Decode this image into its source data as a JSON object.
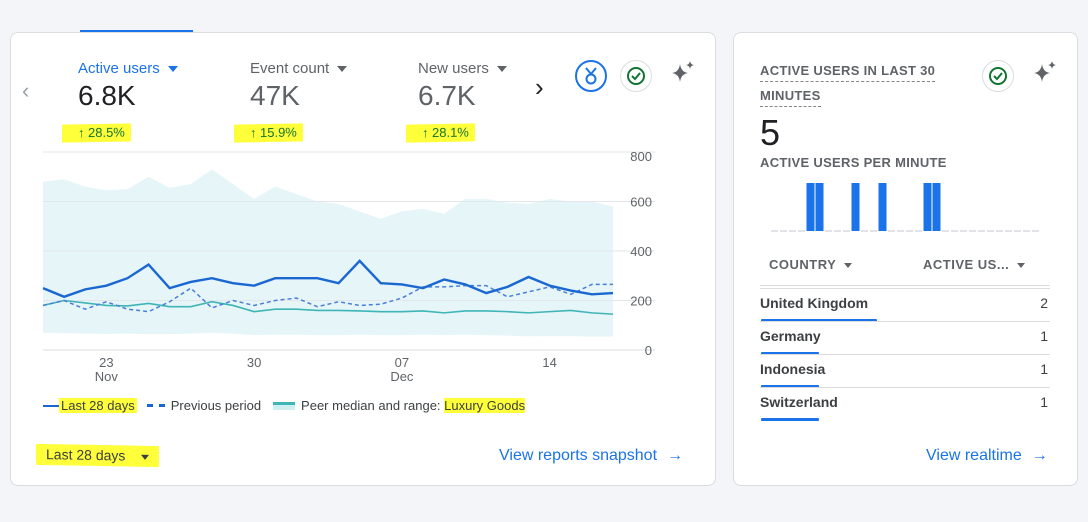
{
  "overview": {
    "metrics": [
      {
        "label": "Active users",
        "value": "6.8K",
        "change": "28.5%",
        "active": true
      },
      {
        "label": "Event count",
        "value": "47K",
        "change": "15.9%",
        "active": false
      },
      {
        "label": "New users",
        "value": "6.7K",
        "change": "28.1%",
        "active": false
      }
    ],
    "icons": [
      "chevron-left-icon",
      "chevron-right-icon",
      "medal-icon",
      "check-circle-icon",
      "sparkle-icon"
    ],
    "legend": {
      "current": "Last 28 days",
      "previous": "Previous period",
      "peer": "Peer median and range: ",
      "peer_category": "Luxury Goods"
    },
    "date_range": "Last 28 days",
    "link": "View reports snapshot"
  },
  "chart_data": {
    "type": "line",
    "x": [
      "Nov 20",
      "Nov 21",
      "Nov 22",
      "Nov 23",
      "Nov 24",
      "Nov 25",
      "Nov 26",
      "Nov 27",
      "Nov 28",
      "Nov 29",
      "Nov 30",
      "Dec 01",
      "Dec 02",
      "Dec 03",
      "Dec 04",
      "Dec 05",
      "Dec 06",
      "Dec 07",
      "Dec 08",
      "Dec 09",
      "Dec 10",
      "Dec 11",
      "Dec 12",
      "Dec 13",
      "Dec 14",
      "Dec 15",
      "Dec 16",
      "Dec 17"
    ],
    "x_ticks": [
      {
        "day": "23",
        "month": "Nov",
        "index": 3
      },
      {
        "day": "30",
        "month": "",
        "index": 10
      },
      {
        "day": "07",
        "month": "Dec",
        "index": 17
      },
      {
        "day": "14",
        "month": "",
        "index": 24
      }
    ],
    "y_ticks": [
      "0",
      "200",
      "400",
      "600",
      "800"
    ],
    "ylim": [
      0,
      800
    ],
    "grid": true,
    "legend_placement": "bottom",
    "series": [
      {
        "name": "Last 28 days",
        "style": "solid",
        "color": "#1a67d2",
        "values": [
          250,
          215,
          245,
          260,
          290,
          345,
          250,
          275,
          290,
          270,
          260,
          290,
          290,
          290,
          270,
          360,
          270,
          265,
          250,
          285,
          265,
          230,
          255,
          295,
          260,
          240,
          225,
          230
        ]
      },
      {
        "name": "Previous period",
        "style": "dashed",
        "color": "#4a7fd6",
        "values": [
          180,
          200,
          165,
          195,
          165,
          155,
          195,
          250,
          170,
          200,
          180,
          200,
          210,
          175,
          195,
          180,
          185,
          210,
          255,
          255,
          260,
          260,
          215,
          235,
          255,
          225,
          265,
          265
        ]
      },
      {
        "name": "Peer median and range: Luxury Goods",
        "style": "band",
        "color": "#3fb5b5",
        "band_color": "#e5f5f8",
        "values": [
          180,
          200,
          190,
          180,
          178,
          188,
          175,
          175,
          195,
          180,
          155,
          165,
          165,
          160,
          160,
          158,
          155,
          155,
          158,
          150,
          158,
          158,
          155,
          150,
          155,
          160,
          150,
          145
        ],
        "upper": [
          680,
          690,
          660,
          645,
          650,
          700,
          655,
          670,
          730,
          670,
          610,
          660,
          630,
          600,
          590,
          560,
          530,
          560,
          570,
          550,
          610,
          610,
          595,
          590,
          610,
          600,
          600,
          580
        ],
        "lower": [
          70,
          68,
          66,
          65,
          66,
          64,
          64,
          66,
          70,
          66,
          60,
          62,
          62,
          60,
          60,
          62,
          60,
          60,
          62,
          60,
          62,
          60,
          58,
          55,
          56,
          56,
          54,
          54
        ]
      }
    ]
  },
  "realtime": {
    "title": "ACTIVE USERS IN LAST 30 MINUTES",
    "title_line1": "ACTIVE USERS IN LAST 30",
    "title_line2": "MINUTES",
    "value": "5",
    "subtitle": "ACTIVE USERS PER MINUTE",
    "per_minute": [
      0,
      0,
      0,
      0,
      1,
      1,
      0,
      0,
      0,
      1,
      0,
      0,
      1,
      0,
      0,
      0,
      0,
      1,
      1,
      0,
      0,
      0,
      0,
      0,
      0,
      0,
      0,
      0,
      0,
      0
    ],
    "col_country": "COUNTRY",
    "col_users": "ACTIVE US...",
    "rows": [
      {
        "country": "United Kingdom",
        "users": "2",
        "share": 1.0
      },
      {
        "country": "Germany",
        "users": "1",
        "share": 0.5
      },
      {
        "country": "Indonesia",
        "users": "1",
        "share": 0.5
      },
      {
        "country": "Switzerland",
        "users": "1",
        "share": 0.5
      }
    ],
    "link": "View realtime"
  },
  "colors": {
    "accent": "#1a73e8",
    "positive": "#137333",
    "highlight": "#ffff3a"
  }
}
